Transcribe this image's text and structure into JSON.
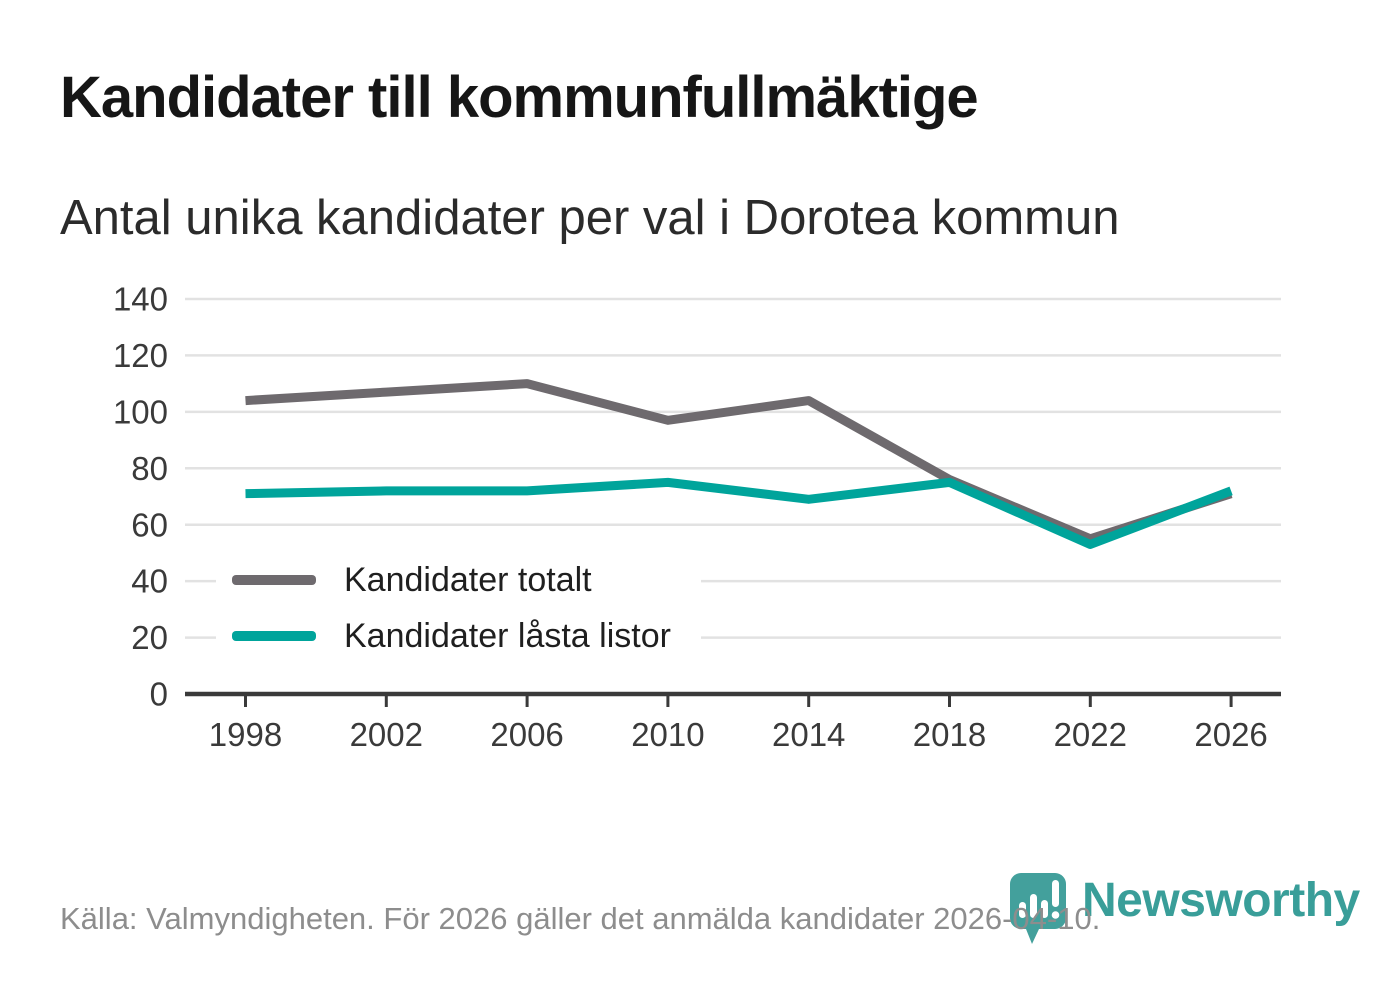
{
  "title": "Kandidater till kommunfullmäktige",
  "subtitle": "Antal unika kandidater per val i Dorotea kommun",
  "source_note": "Källa: Valmyndigheten. För 2026 gäller det anmälda kandidater 2026-04-10.",
  "branding": {
    "wordmark": "Newsworthy",
    "icon": "bar-chart-pin-icon",
    "icon_color": "#43a09c",
    "wordmark_color": "#399e99"
  },
  "legend": {
    "items": [
      {
        "label": "Kandidater totalt",
        "color": "#6e6a6e"
      },
      {
        "label": "Kandidater låsta listor",
        "color": "#00a49b"
      }
    ]
  },
  "chart_data": {
    "type": "line",
    "x": [
      1998,
      2002,
      2006,
      2010,
      2014,
      2018,
      2022,
      2026
    ],
    "categories": [
      "1998",
      "2002",
      "2006",
      "2010",
      "2014",
      "2018",
      "2022",
      "2026"
    ],
    "series": [
      {
        "name": "Kandidater totalt",
        "color": "#6e6a6e",
        "values": [
          104,
          107,
          110,
          97,
          104,
          76,
          55,
          71
        ]
      },
      {
        "name": "Kandidater låsta listor",
        "color": "#00a49b",
        "values": [
          71,
          72,
          72,
          75,
          69,
          75,
          53,
          72
        ]
      }
    ],
    "title": "Kandidater till kommunfullmäktige",
    "subtitle": "Antal unika kandidater per val i Dorotea kommun",
    "xlabel": "",
    "ylabel": "",
    "ylim": [
      0,
      140
    ],
    "ytick_step": 20,
    "yticks": [
      0,
      20,
      40,
      60,
      80,
      100,
      120,
      140
    ],
    "grid": true,
    "legend_position": "inside-bottom-left",
    "line_width": 9,
    "colors": {
      "grid": "#e2e2e2",
      "axis": "#3a3a3a",
      "tick_label": "#3a3a3a"
    }
  }
}
